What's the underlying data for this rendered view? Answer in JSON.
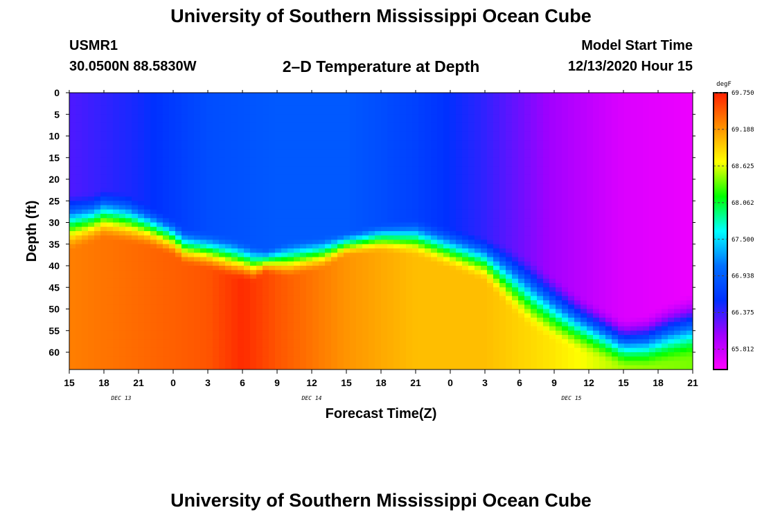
{
  "header": {
    "title": "University of Southern Mississippi Ocean Cube",
    "station_id": "USMR1",
    "station_coords": "30.0500N 88.5830W",
    "plot_title": "2–D Temperature at Depth",
    "model_start_label": "Model Start Time",
    "model_start_value": "12/13/2020 Hour 15"
  },
  "footer": {
    "title": "University of Southern Mississippi Ocean Cube"
  },
  "colors": {
    "ramp": [
      "#ff00ff",
      "#a000ff",
      "#0030ff",
      "#0070ff",
      "#00ffff",
      "#00ff00",
      "#ffff00",
      "#ff9000",
      "#ff2000"
    ]
  },
  "chart_data": {
    "type": "heatmap",
    "title": "2–D Temperature at Depth",
    "xlabel": "Forecast Time(Z)",
    "ylabel": "Depth (ft)",
    "x_tick_labels": [
      "15",
      "18",
      "21",
      "0",
      "3",
      "6",
      "9",
      "12",
      "15",
      "18",
      "21",
      "0",
      "3",
      "6",
      "9",
      "12",
      "15",
      "18",
      "21"
    ],
    "x_hours_from_start": [
      0,
      54
    ],
    "date_labels": [
      {
        "text": "DEC 13",
        "hour": 4.5
      },
      {
        "text": "DEC 14",
        "hour": 21
      },
      {
        "text": "DEC 15",
        "hour": 43.5
      }
    ],
    "y_ticks": [
      0,
      5,
      10,
      15,
      20,
      25,
      30,
      35,
      40,
      45,
      50,
      55,
      60
    ],
    "ylim": [
      0,
      64
    ],
    "colorbar": {
      "unit": "degF",
      "range": [
        65.5,
        69.75
      ],
      "tick_labels": [
        "69.750",
        "69.188",
        "68.625",
        "68.062",
        "67.500",
        "66.938",
        "66.375",
        "65.812"
      ],
      "tick_values": [
        69.75,
        69.188,
        68.625,
        68.062,
        67.5,
        66.938,
        66.375,
        65.812
      ]
    },
    "thermocline": {
      "hours": [
        0,
        2,
        3,
        5,
        7,
        9,
        10,
        12,
        14,
        16,
        17,
        19,
        22,
        24,
        27,
        30,
        33,
        36,
        38,
        40,
        42,
        44,
        46,
        48,
        50,
        52,
        54
      ],
      "top_depth_ft": [
        23,
        23,
        22,
        23,
        26,
        29,
        31,
        32,
        33,
        35,
        36,
        34,
        33,
        32,
        30,
        29,
        31,
        33,
        35,
        38,
        42,
        46,
        49,
        52,
        51,
        48,
        46
      ],
      "bottom_depth_ft": [
        37,
        35,
        34,
        35,
        36,
        38,
        40,
        41,
        43,
        44,
        42,
        43,
        41,
        38,
        37,
        38,
        41,
        44,
        50,
        55,
        58,
        60,
        62,
        64,
        64,
        63,
        62
      ]
    },
    "surface_temp_degF": {
      "hours": [
        0,
        6,
        12,
        18,
        24,
        30,
        36,
        42,
        48,
        54
      ],
      "values": [
        66.3,
        66.5,
        66.8,
        66.9,
        66.9,
        66.7,
        66.4,
        66.0,
        65.7,
        65.6
      ]
    },
    "bottom_temp_degF": {
      "hours": [
        0,
        6,
        12,
        15,
        18,
        24,
        30,
        36,
        42,
        48,
        54
      ],
      "values": [
        69.3,
        69.4,
        69.5,
        69.7,
        69.5,
        69.2,
        69.0,
        69.0,
        68.8,
        68.5,
        68.4
      ]
    }
  }
}
